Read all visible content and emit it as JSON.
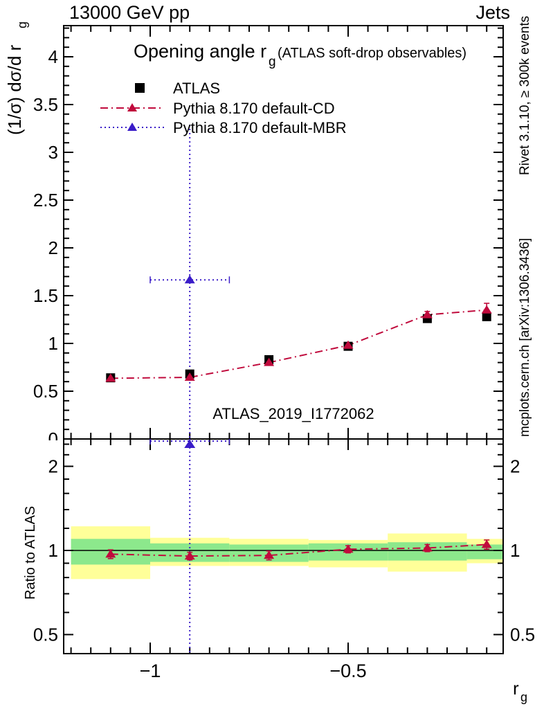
{
  "page": {
    "header_left": "13000 GeV pp",
    "header_right": "Jets"
  },
  "titles": {
    "plot_title_main": "Opening angle r",
    "plot_title_sub": "g",
    "plot_title_suffix": "(ATLAS soft-drop observables)",
    "watermark": "ATLAS_2019_I1772062",
    "right_margin_top": "Rivet 3.1.10, ≥ 300k events",
    "right_margin_bottom": "mcplots.cern.ch [arXiv:1306.3436]",
    "ylabel_main": "(1/σ) dσ/d r",
    "ylabel_sub": "g",
    "ratio_ylabel": "Ratio to ATLAS",
    "xlabel_main": "r",
    "xlabel_sub": "g"
  },
  "legend": [
    {
      "label": "ATLAS",
      "marker": "square",
      "color": "#000000",
      "line": "none"
    },
    {
      "label": "Pythia 8.170 default-CD",
      "marker": "triangle",
      "color": "#c00a3c",
      "line": "dashdot"
    },
    {
      "label": "Pythia 8.170 default-MBR",
      "marker": "triangle",
      "color": "#3a1cc8",
      "line": "dotted"
    }
  ],
  "colors": {
    "atlas": "#000000",
    "pythia_cd": "#c00a3c",
    "pythia_mbr": "#3a1cc8",
    "band_yellow": "#ffff99",
    "band_green": "#8ce88c",
    "gray_text": "#999999",
    "watermark": "#a9a9a9"
  },
  "chart_data": {
    "type": "scatter",
    "title": "Opening angle r_g (ATLAS soft-drop observables)",
    "x_axis": {
      "label": "r_g",
      "range": [
        -1.2185,
        -0.108
      ],
      "ticks_major": [
        -1,
        -0.5
      ],
      "tick_labels": [
        "−1",
        "−0.5"
      ],
      "minor_step": 0.05,
      "bin_edges": [
        -1.2,
        -1.0,
        -0.8,
        -0.6,
        -0.4,
        -0.2,
        -0.1
      ]
    },
    "main_panel": {
      "ylabel": "(1/σ) dσ/d r_g",
      "yrange": [
        0,
        4.33
      ],
      "yticks_major": [
        0,
        0.5,
        1,
        1.5,
        2,
        2.5,
        3,
        3.5,
        4
      ],
      "ytick_minor_step": 0.1,
      "grid": false,
      "series": [
        {
          "name": "ATLAS",
          "marker": "square",
          "color": "#000000",
          "line": "none",
          "x": [
            -1.1,
            -0.9,
            -0.7,
            -0.5,
            -0.3,
            -0.15
          ],
          "y": [
            0.64,
            0.68,
            0.83,
            0.97,
            1.26,
            1.28
          ]
        },
        {
          "name": "Pythia 8.170 default-CD",
          "marker": "triangle",
          "color": "#c00a3c",
          "line": "dashdot",
          "x": [
            -1.1,
            -0.9,
            -0.7,
            -0.5,
            -0.3,
            -0.15
          ],
          "y": [
            0.635,
            0.645,
            0.8,
            0.98,
            1.3,
            1.35
          ],
          "yerr": [
            0.02,
            0.02,
            0.025,
            0.025,
            0.035,
            0.07
          ]
        },
        {
          "name": "Pythia 8.170 default-MBR",
          "marker": "triangle",
          "color": "#3a1cc8",
          "line": "dotted",
          "x": [
            -0.9
          ],
          "y": [
            1.665
          ],
          "xerr_lo": [
            -1.0
          ],
          "xerr_hi": [
            -0.8
          ],
          "yerr_lo_val": [
            0.05
          ],
          "yerr_hi_val": [
            3.29
          ]
        }
      ]
    },
    "ratio_panel": {
      "ylabel": "Ratio to ATLAS",
      "scale": "log",
      "yrange": [
        0.427,
        2.5
      ],
      "yticks_major": [
        2,
        1,
        0.5
      ],
      "yticks_minor": [
        2.4,
        2.2,
        1.8,
        1.6,
        1.4,
        1.2,
        0.9,
        0.8,
        0.7,
        0.6
      ],
      "reference_line": 1,
      "bands": {
        "bin_edges": [
          -1.2,
          -1.0,
          -0.8,
          -0.6,
          -0.4,
          -0.2,
          -0.1
        ],
        "yellow": [
          [
            0.79,
            1.22
          ],
          [
            0.88,
            1.11
          ],
          [
            0.88,
            1.1
          ],
          [
            0.87,
            1.09
          ],
          [
            0.84,
            1.15
          ],
          [
            0.9,
            1.1
          ]
        ],
        "green": [
          [
            0.89,
            1.1
          ],
          [
            0.91,
            1.06
          ],
          [
            0.91,
            1.05
          ],
          [
            0.92,
            1.06
          ],
          [
            0.92,
            1.07
          ],
          [
            0.93,
            1.05
          ]
        ]
      },
      "series": [
        {
          "name": "Pythia 8.170 default-CD",
          "marker": "triangle",
          "color": "#c00a3c",
          "line": "dashdot",
          "x": [
            -1.1,
            -0.9,
            -0.7,
            -0.5,
            -0.3,
            -0.15
          ],
          "y": [
            0.97,
            0.955,
            0.96,
            1.01,
            1.02,
            1.05
          ],
          "yerr": [
            0.035,
            0.03,
            0.035,
            0.03,
            0.03,
            0.04
          ]
        },
        {
          "name": "Pythia 8.170 default-MBR",
          "marker": "triangle",
          "color": "#3a1cc8",
          "line": "dotted",
          "x": [
            -0.9
          ],
          "y": [
            2.45
          ],
          "clipped_top": true,
          "xerr_lo": [
            -1.0
          ],
          "xerr_hi": [
            -0.8
          ]
        }
      ]
    }
  }
}
